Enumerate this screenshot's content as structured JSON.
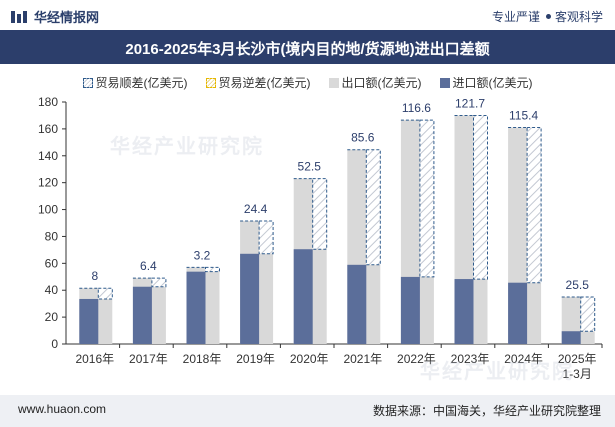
{
  "header": {
    "brand": "华经情报网",
    "tagline_left": "专业严谨",
    "tagline_right": "客观科学"
  },
  "footer": {
    "site": "www.huaon.com",
    "source": "数据来源：中国海关，华经产业研究院整理"
  },
  "watermark": "华经产业研究院",
  "colors": {
    "title_bg": "#2c3e6b",
    "export": "#d9d9d9",
    "import": "#5b6e9a",
    "surplus_border": "#2f5b8c",
    "deficit_border": "#e6b800"
  },
  "chart_data": {
    "type": "bar",
    "title": "2016-2025年3月长沙市(境内目的地/货源地)进出口差额",
    "categories": [
      "2016年",
      "2017年",
      "2018年",
      "2019年",
      "2020年",
      "2021年",
      "2022年",
      "2023年",
      "2024年",
      "2025年\n1-3月"
    ],
    "series": [
      {
        "name": "贸易顺差(亿美元)",
        "values": [
          8,
          6.4,
          3.2,
          24.4,
          52.5,
          85.6,
          116.6,
          121.7,
          115.4,
          25.5
        ]
      },
      {
        "name": "贸易逆差(亿美元)",
        "values": [
          0,
          0,
          0,
          0,
          0,
          0,
          0,
          0,
          0,
          0
        ]
      },
      {
        "name": "出口额(亿美元)",
        "values": [
          41.5,
          49,
          57,
          91.5,
          123,
          144.5,
          166.5,
          170,
          161,
          35
        ]
      },
      {
        "name": "进口额(亿美元)",
        "values": [
          33.5,
          42.6,
          53.8,
          67.1,
          70.5,
          58.9,
          49.9,
          48.3,
          45.6,
          9.5
        ]
      }
    ],
    "data_labels": [
      "8",
      "6.4",
      "3.2",
      "24.4",
      "52.5",
      "85.6",
      "116.6",
      "121.7",
      "115.4",
      "25.5"
    ],
    "yticks": [
      "0",
      "20",
      "40",
      "60",
      "80",
      "100",
      "120",
      "140",
      "160",
      "180"
    ],
    "ylim": [
      0,
      180
    ],
    "xlabel": "",
    "ylabel": "",
    "grid": false,
    "legend_position": "top"
  }
}
